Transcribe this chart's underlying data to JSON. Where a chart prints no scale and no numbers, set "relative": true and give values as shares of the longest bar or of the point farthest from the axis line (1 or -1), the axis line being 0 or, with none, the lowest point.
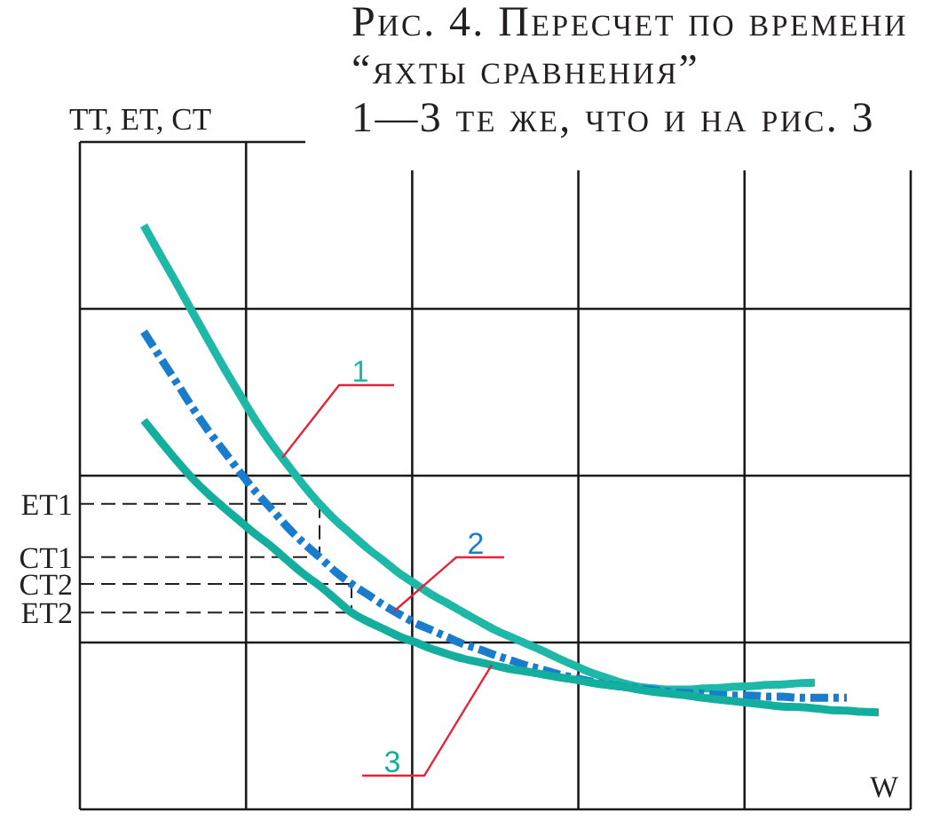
{
  "chart_data": {
    "type": "line",
    "title": "Рис. 4. Пересчет по времени “яхты сравнения”",
    "subtitle": "1—3 те же, что и на рис. 3",
    "xlabel": "W",
    "ylabel": "TT, ET, CT",
    "relative": true,
    "grid": true,
    "categories": [
      null,
      null,
      null,
      null,
      null,
      null,
      null,
      null,
      null,
      null,
      null,
      null,
      null,
      null,
      null,
      null,
      null,
      null,
      null,
      null,
      null,
      null,
      null,
      null,
      null,
      null,
      null,
      null,
      null,
      null,
      null,
      null,
      null,
      null,
      null,
      null,
      null,
      null,
      null,
      null,
      null,
      null,
      null,
      null,
      null,
      null,
      null,
      null,
      null,
      null,
      null,
      null,
      null
    ],
    "series": [
      {
        "name": "1",
        "color": "#1eb8a8",
        "values": [
          null,
          null,
          null,
          null,
          1,
          0.951,
          0.903,
          0.854,
          0.805,
          0.757,
          0.711,
          0.666,
          0.626,
          0.59,
          0.555,
          0.523,
          0.495,
          0.471,
          0.447,
          0.426,
          0.404,
          0.386,
          0.368,
          0.353,
          0.337,
          0.322,
          0.307,
          0.295,
          0.283,
          0.271,
          0.258,
          0.246,
          0.234,
          0.225,
          0.216,
          0.21,
          0.207,
          0.205,
          0.205,
          0.207,
          0.208,
          0.21,
          0.211,
          0.213,
          0.214,
          0.216,
          0.217,
          null,
          null,
          null,
          null,
          null,
          null
        ]
      },
      {
        "name": "2",
        "color": "#1a7ccc",
        "line_style": "dashed",
        "values": [
          null,
          null,
          null,
          null,
          0.818,
          0.775,
          0.733,
          0.69,
          0.65,
          0.614,
          0.578,
          0.544,
          0.514,
          0.483,
          0.456,
          0.432,
          0.407,
          0.386,
          0.368,
          0.35,
          0.334,
          0.319,
          0.307,
          0.295,
          0.283,
          0.274,
          0.264,
          0.255,
          0.246,
          0.239,
          0.231,
          0.225,
          0.219,
          0.214,
          0.21,
          0.207,
          0.204,
          0.201,
          0.199,
          0.198,
          0.196,
          0.195,
          0.195,
          0.193,
          0.193,
          0.191,
          0.191,
          0.191,
          0.191,
          null,
          null,
          null,
          null
        ]
      },
      {
        "name": "3",
        "color": "#13ae9e",
        "values": [
          null,
          null,
          null,
          null,
          0.666,
          0.632,
          0.599,
          0.568,
          0.541,
          0.517,
          0.494,
          0.471,
          0.45,
          0.426,
          0.403,
          0.383,
          0.36,
          0.337,
          0.322,
          0.309,
          0.296,
          0.286,
          0.275,
          0.266,
          0.258,
          0.252,
          0.246,
          0.24,
          0.236,
          0.231,
          0.226,
          0.222,
          0.217,
          0.213,
          0.21,
          0.205,
          0.201,
          0.198,
          0.195,
          0.191,
          0.188,
          0.185,
          0.182,
          0.179,
          0.176,
          0.175,
          0.173,
          0.17,
          0.169,
          0.167,
          0.166,
          null,
          null
        ]
      }
    ],
    "ref_lines": [
      {
        "axis": "y",
        "value": 0.523,
        "label": "ET1",
        "line_style": "dashed"
      },
      {
        "axis": "y",
        "value": 0.432,
        "label": "CT1",
        "line_style": "dashed"
      },
      {
        "axis": "y",
        "value": 0.386,
        "label": "CT2",
        "line_style": "dashed"
      },
      {
        "axis": "y",
        "value": 0.337,
        "label": "ET2",
        "line_style": "dashed"
      }
    ]
  }
}
